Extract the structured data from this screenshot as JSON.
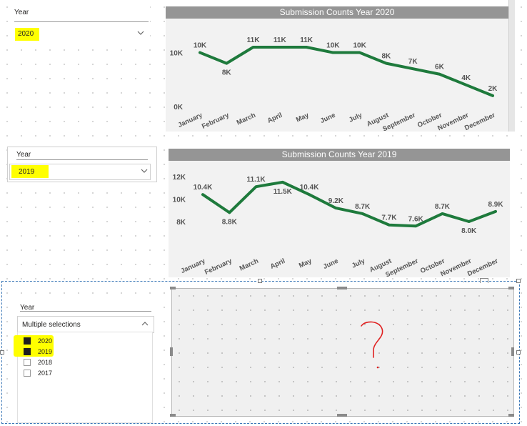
{
  "slicer_2020": {
    "title": "Year",
    "selected": "2020"
  },
  "chart_2020": {
    "title": "Submission Counts Year 2020",
    "chart_data": {
      "type": "line",
      "title": "Submission Counts Year 2020",
      "categories": [
        "January",
        "February",
        "March",
        "April",
        "May",
        "June",
        "July",
        "August",
        "September",
        "October",
        "November",
        "December"
      ],
      "values": [
        10,
        8,
        11,
        11,
        11,
        10,
        10,
        8,
        7,
        6,
        4,
        2
      ],
      "data_labels": [
        "10K",
        "8K",
        "11K",
        "11K",
        "11K",
        "10K",
        "10K",
        "8K",
        "7K",
        "6K",
        "4K",
        "2K"
      ],
      "y_ticks": [
        "0K",
        "10K"
      ],
      "color": "#1e7a3c"
    }
  },
  "slicer_2019": {
    "title": "Year",
    "selected": "2019"
  },
  "chart_2019": {
    "title": "Submission Counts Year 2019",
    "chart_data": {
      "type": "line",
      "title": "Submission Counts Year 2019",
      "categories": [
        "January",
        "February",
        "March",
        "April",
        "May",
        "June",
        "July",
        "August",
        "September",
        "October",
        "November",
        "December"
      ],
      "values": [
        10.4,
        8.8,
        11.1,
        11.5,
        10.4,
        9.2,
        8.7,
        7.7,
        7.6,
        8.7,
        8.0,
        8.9
      ],
      "data_labels": [
        "10.4K",
        "8.8K",
        "11.1K",
        "11.5K",
        "10.4K",
        "9.2K",
        "8.7K",
        "7.7K",
        "7.6K",
        "8.7K",
        "8.0K",
        "8.9K"
      ],
      "y_ticks": [
        "8K",
        "10K",
        "12K"
      ],
      "color": "#1e7a3c"
    }
  },
  "slicer_multi": {
    "title": "Year",
    "selected": "Multiple selections",
    "options": [
      {
        "label": "2020",
        "checked": true
      },
      {
        "label": "2019",
        "checked": true
      },
      {
        "label": "2018",
        "checked": false
      },
      {
        "label": "2017",
        "checked": false
      }
    ]
  },
  "annotation": {
    "text": "?",
    "color": "#e02020"
  },
  "colors": {
    "highlight": "#ffff00",
    "line": "#1e7a3c",
    "title_bar": "#959595",
    "selection": "#3a77b7"
  }
}
